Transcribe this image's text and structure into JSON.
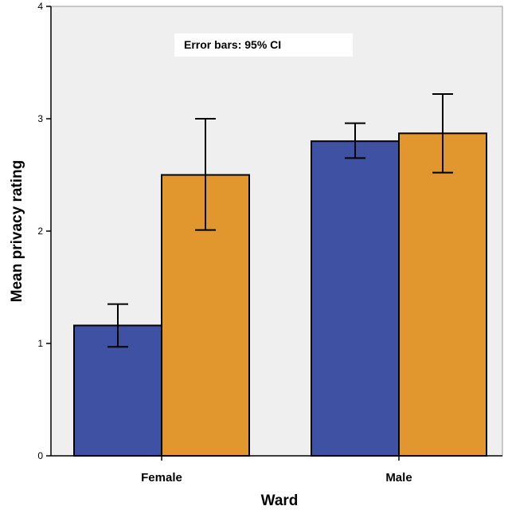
{
  "chart_data": {
    "type": "bar",
    "categories": [
      "Female",
      "Male"
    ],
    "series": [
      {
        "color": "#3e51a3",
        "values": [
          1.16,
          2.8
        ],
        "ci_low": [
          0.97,
          2.65
        ],
        "ci_high": [
          1.35,
          2.96
        ]
      },
      {
        "color": "#e1962e",
        "values": [
          2.5,
          2.87
        ],
        "ci_low": [
          2.01,
          2.52
        ],
        "ci_high": [
          3.0,
          3.22
        ]
      }
    ],
    "xlabel": "Ward",
    "ylabel": "Mean privacy rating",
    "ylim": [
      0,
      4
    ],
    "yticks": [
      "0",
      "1",
      "2",
      "3",
      "4"
    ],
    "annotation": "Error bars: 95% CI",
    "plot_background": "#efefef",
    "grid": false
  }
}
